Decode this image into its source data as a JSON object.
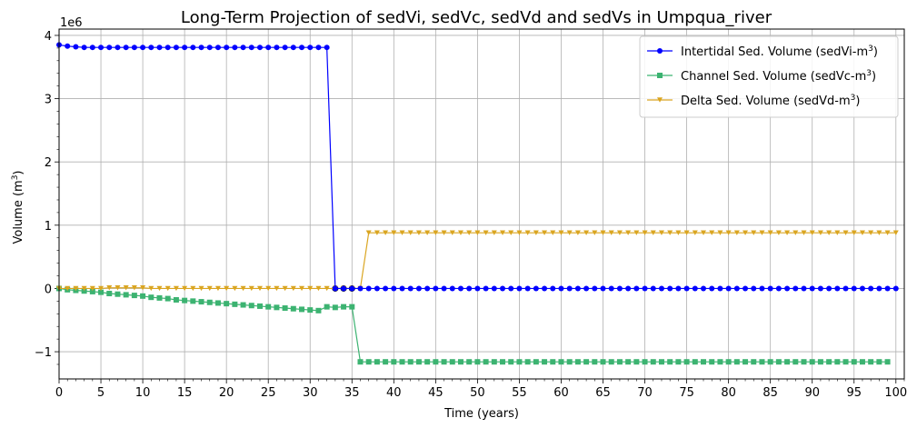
{
  "chart_data": {
    "type": "line",
    "title": "Long-Term Projection of sedVi, sedVc, sedVd and sedVs in Umpqua_river",
    "xlabel": "Time (years)",
    "ylabel_main": "Volume (m",
    "ylabel_sup": "3",
    "ylabel_end": ")",
    "offset_label": "1e6",
    "xlim": [
      0,
      101
    ],
    "ylim": [
      -1.43,
      4.1
    ],
    "xticks": [
      0,
      5,
      10,
      15,
      20,
      25,
      30,
      35,
      40,
      45,
      50,
      55,
      60,
      65,
      70,
      75,
      80,
      85,
      90,
      95,
      100
    ],
    "xtick_labels": [
      "0",
      "5",
      "10",
      "15",
      "20",
      "25",
      "30",
      "35",
      "40",
      "45",
      "50",
      "55",
      "60",
      "65",
      "70",
      "75",
      "80",
      "85",
      "90",
      "95",
      "100"
    ],
    "yticks": [
      -1,
      0,
      1,
      2,
      3,
      4
    ],
    "ytick_labels": [
      "−1",
      "0",
      "1",
      "2",
      "3",
      "4"
    ],
    "grid": true,
    "legend_position": "top-right",
    "series": [
      {
        "name_main": "Intertidal Sed. Volume (sedVi-m",
        "name_sup": "3",
        "name_end": ")",
        "color": "#0000ff",
        "marker": "circle",
        "x": [
          0,
          1,
          2,
          3,
          4,
          5,
          6,
          7,
          8,
          9,
          10,
          11,
          12,
          13,
          14,
          15,
          16,
          17,
          18,
          19,
          20,
          21,
          22,
          23,
          24,
          25,
          26,
          27,
          28,
          29,
          30,
          31,
          32,
          33,
          34,
          35,
          36,
          37,
          38,
          39,
          40,
          41,
          42,
          43,
          44,
          45,
          46,
          47,
          48,
          49,
          50,
          51,
          52,
          53,
          54,
          55,
          56,
          57,
          58,
          59,
          60,
          61,
          62,
          63,
          64,
          65,
          66,
          67,
          68,
          69,
          70,
          71,
          72,
          73,
          74,
          75,
          76,
          77,
          78,
          79,
          80,
          81,
          82,
          83,
          84,
          85,
          86,
          87,
          88,
          89,
          90,
          91,
          92,
          93,
          94,
          95,
          96,
          97,
          98,
          99,
          100
        ],
        "values": [
          3.85,
          3.83,
          3.82,
          3.81,
          3.81,
          3.81,
          3.81,
          3.81,
          3.81,
          3.81,
          3.81,
          3.81,
          3.81,
          3.81,
          3.81,
          3.81,
          3.81,
          3.81,
          3.81,
          3.81,
          3.81,
          3.81,
          3.81,
          3.81,
          3.81,
          3.81,
          3.81,
          3.81,
          3.81,
          3.81,
          3.81,
          3.81,
          3.81,
          0,
          0,
          0,
          0,
          0,
          0,
          0,
          0,
          0,
          0,
          0,
          0,
          0,
          0,
          0,
          0,
          0,
          0,
          0,
          0,
          0,
          0,
          0,
          0,
          0,
          0,
          0,
          0,
          0,
          0,
          0,
          0,
          0,
          0,
          0,
          0,
          0,
          0,
          0,
          0,
          0,
          0,
          0,
          0,
          0,
          0,
          0,
          0,
          0,
          0,
          0,
          0,
          0,
          0,
          0,
          0,
          0,
          0,
          0,
          0,
          0,
          0,
          0,
          0,
          0,
          0,
          0,
          0
        ]
      },
      {
        "name_main": "Channel Sed. Volume (sedVc-m",
        "name_sup": "3",
        "name_end": ")",
        "color": "#3cb371",
        "marker": "square",
        "x": [
          0,
          1,
          2,
          3,
          4,
          5,
          6,
          7,
          8,
          9,
          10,
          11,
          12,
          13,
          14,
          15,
          16,
          17,
          18,
          19,
          20,
          21,
          22,
          23,
          24,
          25,
          26,
          27,
          28,
          29,
          30,
          31,
          32,
          33,
          34,
          35,
          36,
          37,
          38,
          39,
          40,
          41,
          42,
          43,
          44,
          45,
          46,
          47,
          48,
          49,
          50,
          51,
          52,
          53,
          54,
          55,
          56,
          57,
          58,
          59,
          60,
          61,
          62,
          63,
          64,
          65,
          66,
          67,
          68,
          69,
          70,
          71,
          72,
          73,
          74,
          75,
          76,
          77,
          78,
          79,
          80,
          81,
          82,
          83,
          84,
          85,
          86,
          87,
          88,
          89,
          90,
          91,
          92,
          93,
          94,
          95,
          96,
          97,
          98,
          99
        ],
        "values": [
          0,
          -0.02,
          -0.03,
          -0.04,
          -0.05,
          -0.06,
          -0.08,
          -0.09,
          -0.1,
          -0.11,
          -0.12,
          -0.14,
          -0.15,
          -0.16,
          -0.18,
          -0.19,
          -0.2,
          -0.21,
          -0.22,
          -0.23,
          -0.24,
          -0.25,
          -0.26,
          -0.27,
          -0.28,
          -0.29,
          -0.3,
          -0.31,
          -0.32,
          -0.33,
          -0.34,
          -0.35,
          -0.29,
          -0.3,
          -0.29,
          -0.29,
          -1.16,
          -1.16,
          -1.16,
          -1.16,
          -1.16,
          -1.16,
          -1.16,
          -1.16,
          -1.16,
          -1.16,
          -1.16,
          -1.16,
          -1.16,
          -1.16,
          -1.16,
          -1.16,
          -1.16,
          -1.16,
          -1.16,
          -1.16,
          -1.16,
          -1.16,
          -1.16,
          -1.16,
          -1.16,
          -1.16,
          -1.16,
          -1.16,
          -1.16,
          -1.16,
          -1.16,
          -1.16,
          -1.16,
          -1.16,
          -1.16,
          -1.16,
          -1.16,
          -1.16,
          -1.16,
          -1.16,
          -1.16,
          -1.16,
          -1.16,
          -1.16,
          -1.16,
          -1.16,
          -1.16,
          -1.16,
          -1.16,
          -1.16,
          -1.16,
          -1.16,
          -1.16,
          -1.16,
          -1.16,
          -1.16,
          -1.16,
          -1.16,
          -1.16,
          -1.16,
          -1.16,
          -1.16,
          -1.16,
          -1.16
        ]
      },
      {
        "name_main": "Delta Sed. Volume (sedVd-m",
        "name_sup": "3",
        "name_end": ")",
        "color": "#daa520",
        "marker": "triangle-down",
        "x": [
          0,
          1,
          2,
          3,
          4,
          5,
          6,
          7,
          8,
          9,
          10,
          11,
          12,
          13,
          14,
          15,
          16,
          17,
          18,
          19,
          20,
          21,
          22,
          23,
          24,
          25,
          26,
          27,
          28,
          29,
          30,
          31,
          32,
          33,
          34,
          35,
          36,
          37,
          38,
          39,
          40,
          41,
          42,
          43,
          44,
          45,
          46,
          47,
          48,
          49,
          50,
          51,
          52,
          53,
          54,
          55,
          56,
          57,
          58,
          59,
          60,
          61,
          62,
          63,
          64,
          65,
          66,
          67,
          68,
          69,
          70,
          71,
          72,
          73,
          74,
          75,
          76,
          77,
          78,
          79,
          80,
          81,
          82,
          83,
          84,
          85,
          86,
          87,
          88,
          89,
          90,
          91,
          92,
          93,
          94,
          95,
          96,
          97,
          98,
          99,
          100
        ],
        "values": [
          0,
          0,
          0,
          0,
          0,
          0,
          0.01,
          0.01,
          0.01,
          0.01,
          0.01,
          0,
          0,
          0,
          0,
          0,
          0,
          0,
          0,
          0,
          0,
          0,
          0,
          0,
          0,
          0,
          0,
          0,
          0,
          0,
          0,
          0,
          0,
          0,
          0,
          0,
          0,
          0.88,
          0.88,
          0.88,
          0.88,
          0.88,
          0.88,
          0.88,
          0.88,
          0.88,
          0.88,
          0.88,
          0.88,
          0.88,
          0.88,
          0.88,
          0.88,
          0.88,
          0.88,
          0.88,
          0.88,
          0.88,
          0.88,
          0.88,
          0.88,
          0.88,
          0.88,
          0.88,
          0.88,
          0.88,
          0.88,
          0.88,
          0.88,
          0.88,
          0.88,
          0.88,
          0.88,
          0.88,
          0.88,
          0.88,
          0.88,
          0.88,
          0.88,
          0.88,
          0.88,
          0.88,
          0.88,
          0.88,
          0.88,
          0.88,
          0.88,
          0.88,
          0.88,
          0.88,
          0.88,
          0.88,
          0.88,
          0.88,
          0.88,
          0.88,
          0.88,
          0.88,
          0.88,
          0.88,
          0.88
        ]
      },
      {
        "color": "#000000",
        "marker": "open-circle",
        "x": [
          33,
          34,
          35
        ],
        "values": [
          0,
          0,
          0
        ]
      }
    ]
  }
}
